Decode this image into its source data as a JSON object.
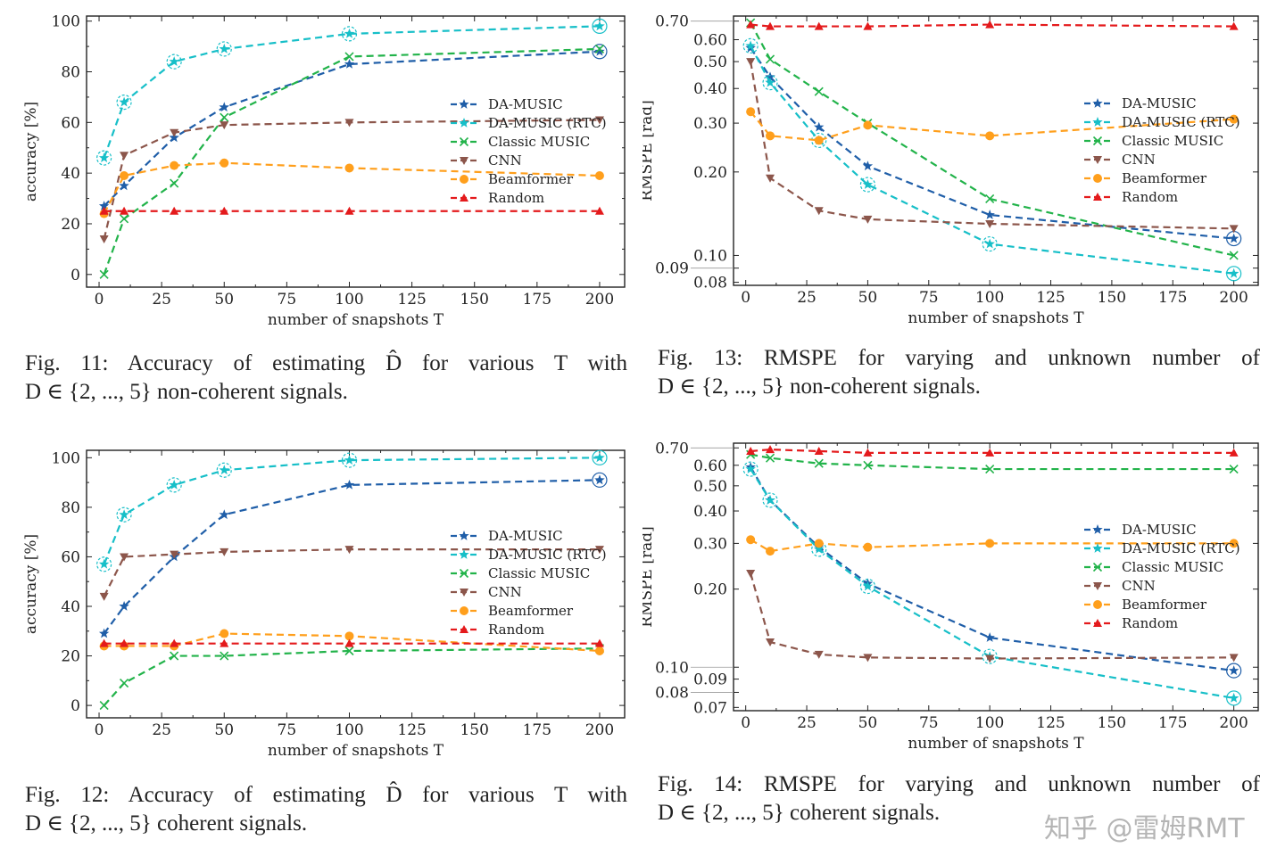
{
  "series_styles": [
    {
      "name": "DA-MUSIC",
      "color": "#1f5ea8",
      "marker": "star"
    },
    {
      "name": "DA-MUSIC (RTC)",
      "color": "#17bfc8",
      "marker": "star"
    },
    {
      "name": "Classic MUSIC",
      "color": "#22b34a",
      "marker": "x"
    },
    {
      "name": "CNN",
      "color": "#8c564b",
      "marker": "triangle-down"
    },
    {
      "name": "Beamformer",
      "color": "#ff9f1c",
      "marker": "circle"
    },
    {
      "name": "Random",
      "color": "#e41a1c",
      "marker": "triangle-up"
    }
  ],
  "chart_data": [
    {
      "id": "fig11",
      "type": "line",
      "xlabel": "number of snapshots T",
      "ylabel": "accuracy [%]",
      "xlim": [
        -5,
        210
      ],
      "ylim": [
        -5,
        102
      ],
      "yscale": "linear",
      "xticks": [
        0,
        25,
        50,
        75,
        100,
        125,
        150,
        175,
        200
      ],
      "yticks": [
        0,
        20,
        40,
        60,
        80,
        100
      ],
      "ytick_labels": [
        "0",
        "20",
        "40",
        "60",
        "80",
        "100"
      ],
      "grid": false,
      "legend": "right",
      "x": [
        2,
        10,
        30,
        50,
        100,
        200
      ],
      "series": [
        {
          "name": "DA-MUSIC",
          "values": [
            27,
            35,
            54,
            66,
            83,
            88
          ]
        },
        {
          "name": "DA-MUSIC (RTC)",
          "values": [
            46,
            68,
            84,
            89,
            95,
            98
          ]
        },
        {
          "name": "Classic MUSIC",
          "values": [
            0,
            22,
            36,
            62,
            86,
            89
          ]
        },
        {
          "name": "CNN",
          "values": [
            14,
            47,
            56,
            59,
            60,
            61
          ]
        },
        {
          "name": "Beamformer",
          "values": [
            24,
            39,
            43,
            44,
            42,
            39
          ]
        },
        {
          "name": "Random",
          "values": [
            25,
            25,
            25,
            25,
            25,
            25
          ]
        }
      ]
    },
    {
      "id": "fig13",
      "type": "line",
      "xlabel": "number of snapshots T",
      "ylabel": "RMSPE [rad]",
      "xlim": [
        -5,
        210
      ],
      "ylim": [
        0.078,
        0.73
      ],
      "yscale": "log",
      "xticks": [
        0,
        25,
        50,
        75,
        100,
        125,
        150,
        175,
        200
      ],
      "yticks": [
        0.08,
        0.09,
        0.1,
        0.2,
        0.3,
        0.4,
        0.5,
        0.6,
        0.7
      ],
      "ytick_labels": [
        "0.08",
        "0.09",
        "0.10",
        "0.20",
        "0.30",
        "0.40",
        "0.50",
        "0.60",
        "0.70"
      ],
      "grid": false,
      "legend": "right",
      "x": [
        2,
        10,
        30,
        50,
        100,
        200
      ],
      "series": [
        {
          "name": "DA-MUSIC",
          "values": [
            0.56,
            0.44,
            0.29,
            0.21,
            0.14,
            0.115
          ]
        },
        {
          "name": "DA-MUSIC (RTC)",
          "values": [
            0.57,
            0.42,
            0.26,
            0.18,
            0.11,
            0.086
          ]
        },
        {
          "name": "Classic MUSIC",
          "values": [
            0.69,
            0.51,
            0.39,
            0.3,
            0.16,
            0.1
          ]
        },
        {
          "name": "CNN",
          "values": [
            0.5,
            0.19,
            0.145,
            0.135,
            0.13,
            0.125
          ]
        },
        {
          "name": "Beamformer",
          "values": [
            0.33,
            0.27,
            0.26,
            0.295,
            0.27,
            0.31
          ]
        },
        {
          "name": "Random",
          "values": [
            0.68,
            0.67,
            0.67,
            0.67,
            0.68,
            0.67
          ]
        }
      ]
    },
    {
      "id": "fig12",
      "type": "line",
      "xlabel": "number of snapshots T",
      "ylabel": "accuracy [%]",
      "xlim": [
        -5,
        210
      ],
      "ylim": [
        -5,
        103
      ],
      "yscale": "linear",
      "xticks": [
        0,
        25,
        50,
        75,
        100,
        125,
        150,
        175,
        200
      ],
      "yticks": [
        0,
        20,
        40,
        60,
        80,
        100
      ],
      "ytick_labels": [
        "0",
        "20",
        "40",
        "60",
        "80",
        "100"
      ],
      "grid": false,
      "legend": "right",
      "x": [
        2,
        10,
        30,
        50,
        100,
        200
      ],
      "series": [
        {
          "name": "DA-MUSIC",
          "values": [
            29,
            40,
            60,
            77,
            89,
            91
          ]
        },
        {
          "name": "DA-MUSIC (RTC)",
          "values": [
            57,
            77,
            89,
            95,
            99,
            100
          ]
        },
        {
          "name": "Classic MUSIC",
          "values": [
            0,
            9,
            20,
            20,
            22,
            23
          ]
        },
        {
          "name": "CNN",
          "values": [
            44,
            60,
            61,
            62,
            63,
            63
          ]
        },
        {
          "name": "Beamformer",
          "values": [
            24,
            24,
            24,
            29,
            28,
            22
          ]
        },
        {
          "name": "Random",
          "values": [
            25,
            25,
            25,
            25,
            25,
            25
          ]
        }
      ]
    },
    {
      "id": "fig14",
      "type": "line",
      "xlabel": "number of snapshots T",
      "ylabel": "RMSPE [rad]",
      "xlim": [
        -5,
        210
      ],
      "ylim": [
        0.068,
        0.73
      ],
      "yscale": "log",
      "xticks": [
        0,
        25,
        50,
        75,
        100,
        125,
        150,
        175,
        200
      ],
      "yticks": [
        0.07,
        0.08,
        0.09,
        0.1,
        0.2,
        0.3,
        0.4,
        0.5,
        0.6,
        0.7
      ],
      "ytick_labels": [
        "0.07",
        "0.08",
        "0.09",
        "0.10",
        "0.20",
        "0.30",
        "0.40",
        "0.50",
        "0.60",
        "0.70"
      ],
      "grid": false,
      "legend": "right",
      "x": [
        2,
        10,
        30,
        50,
        100,
        200
      ],
      "series": [
        {
          "name": "DA-MUSIC",
          "values": [
            0.59,
            0.44,
            0.29,
            0.21,
            0.13,
            0.097
          ]
        },
        {
          "name": "DA-MUSIC (RTC)",
          "values": [
            0.58,
            0.44,
            0.285,
            0.205,
            0.11,
            0.076
          ]
        },
        {
          "name": "Classic MUSIC",
          "values": [
            0.66,
            0.64,
            0.61,
            0.6,
            0.58,
            0.58
          ]
        },
        {
          "name": "CNN",
          "values": [
            0.23,
            0.125,
            0.112,
            0.109,
            0.108,
            0.109
          ]
        },
        {
          "name": "Beamformer",
          "values": [
            0.31,
            0.28,
            0.3,
            0.29,
            0.3,
            0.3
          ]
        },
        {
          "name": "Random",
          "values": [
            0.68,
            0.69,
            0.68,
            0.67,
            0.67,
            0.67
          ]
        }
      ]
    }
  ],
  "captions": {
    "fig11": {
      "line1": "Fig. 11: Accuracy of estimating D̂ for various T with",
      "line2": "D ∈ {2, ..., 5} non-coherent signals."
    },
    "fig13": {
      "line1": "Fig. 13: RMSPE for varying and unknown number of",
      "line2": "D ∈ {2, ..., 5} non-coherent signals."
    },
    "fig12": {
      "line1": "Fig. 12: Accuracy of estimating D̂ for various T with",
      "line2": "D ∈ {2, ..., 5} coherent signals."
    },
    "fig14": {
      "line1": "Fig. 14: RMSPE for varying and unknown number of",
      "line2": "D ∈ {2, ..., 5} coherent signals."
    }
  },
  "watermark": "知乎 @雷姆RMT"
}
